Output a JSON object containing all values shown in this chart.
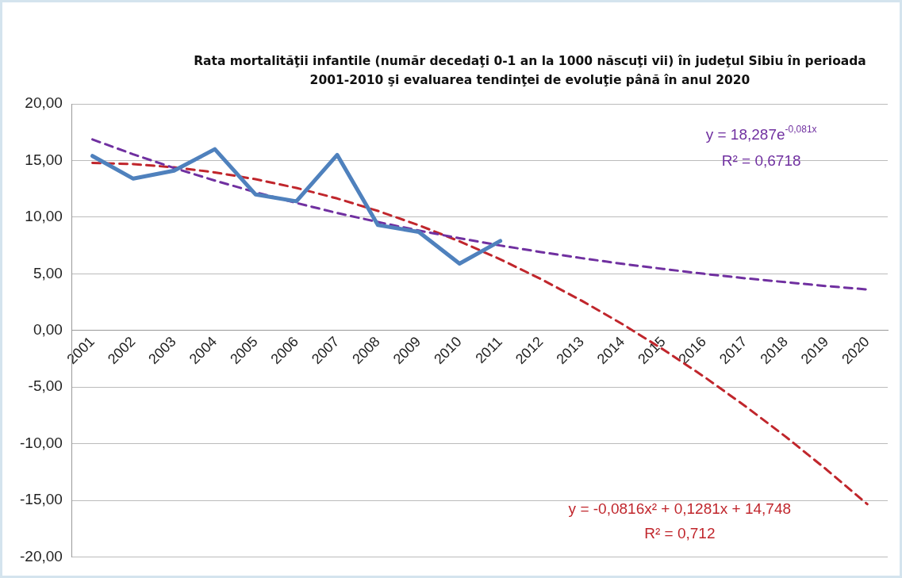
{
  "chart_data": {
    "type": "line",
    "title": "Rata mortalităţii infantile (număr decedaţi 0-1 an la 1000 născuţi vii) în judeţul Sibiu în perioada 2001-2010 şi evaluarea tendinţei de evoluţie până în anul 2020",
    "categories": [
      "2001",
      "2002",
      "2003",
      "2004",
      "2005",
      "2006",
      "2007",
      "2008",
      "2009",
      "2010",
      "2011",
      "2012",
      "2013",
      "2014",
      "2015",
      "2016",
      "2017",
      "2018",
      "2019",
      "2020"
    ],
    "series": [
      {
        "color": "#4f81bd",
        "line_style": "solid",
        "values": [
          15.4,
          13.4,
          14.1,
          16.0,
          12.0,
          11.4,
          15.5,
          9.3,
          8.7,
          5.9,
          7.9,
          null,
          null,
          null,
          null,
          null,
          null,
          null,
          null,
          null
        ]
      },
      {
        "color": "#7030a0",
        "line_style": "dashed",
        "values": [
          16.86,
          15.55,
          14.34,
          13.23,
          12.2,
          11.25,
          10.37,
          9.57,
          8.82,
          8.14,
          7.5,
          6.92,
          6.38,
          5.88,
          5.43,
          5.0,
          4.61,
          4.26,
          3.92,
          3.62
        ]
      },
      {
        "color": "#c0262c",
        "line_style": "dashed",
        "values": [
          14.79,
          14.68,
          14.4,
          13.95,
          13.35,
          12.58,
          11.65,
          10.55,
          9.29,
          7.87,
          6.28,
          4.53,
          2.62,
          0.55,
          -1.69,
          -4.09,
          -6.66,
          -9.38,
          -12.28,
          -15.33
        ]
      }
    ],
    "ylim": [
      -20,
      20
    ],
    "yticks": [
      {
        "value": -20,
        "label": "-20,00"
      },
      {
        "value": -15,
        "label": "-15,00"
      },
      {
        "value": -10,
        "label": "-10,00"
      },
      {
        "value": -5,
        "label": "-5,00"
      },
      {
        "value": 0,
        "label": "0,00"
      },
      {
        "value": 5,
        "label": "5,00"
      },
      {
        "value": 10,
        "label": "10,00"
      },
      {
        "value": 15,
        "label": "15,00"
      },
      {
        "value": 20,
        "label": "20,00"
      }
    ],
    "grid": "y",
    "marker": "none",
    "annotations": [
      "y = 18,287e$^{-0,081x}$",
      "R² = 0,6718",
      "y = -0,0816x² + 0,1281x + 14,748",
      "R² = 0,712"
    ]
  }
}
